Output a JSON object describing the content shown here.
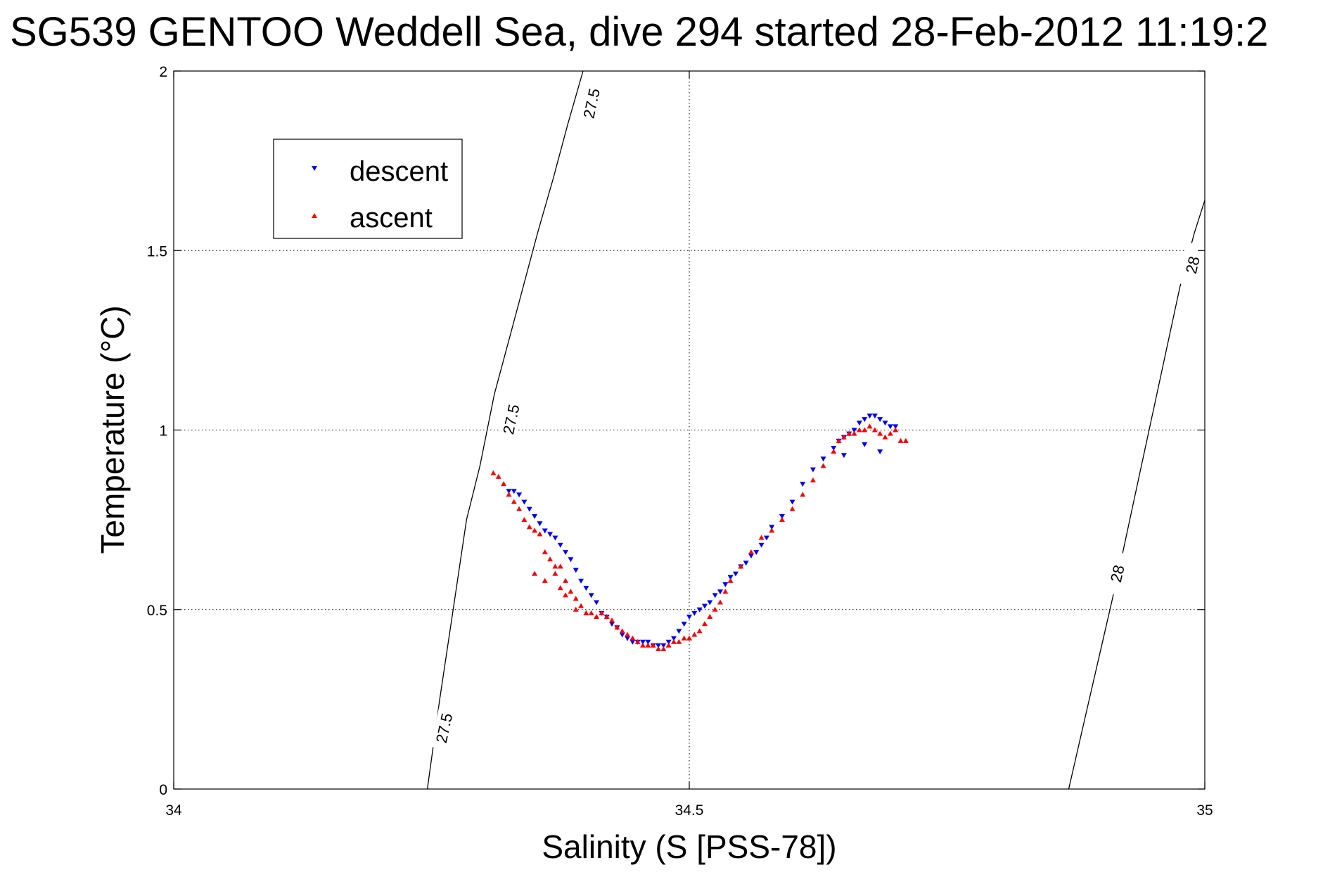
{
  "chart_data": {
    "type": "scatter",
    "title": "SG539 GENTOO Weddell Sea, dive 294 started 28-Feb-2012 11:19:2",
    "xlabel": "Salinity (S [PSS-78])",
    "ylabel": "Temperature (°C)",
    "xlim": [
      34,
      35
    ],
    "ylim": [
      0,
      2
    ],
    "xticks": [
      {
        "value": 34,
        "label": "34"
      },
      {
        "value": 34.5,
        "label": "34.5"
      },
      {
        "value": 35,
        "label": "35"
      }
    ],
    "yticks": [
      {
        "value": 0,
        "label": "0"
      },
      {
        "value": 0.5,
        "label": "0.5"
      },
      {
        "value": 1,
        "label": "1"
      },
      {
        "value": 1.5,
        "label": "1.5"
      },
      {
        "value": 2,
        "label": "2"
      }
    ],
    "grid": true,
    "grid_style": "dotted",
    "legend_position": "top-left",
    "series": [
      {
        "name": "descent",
        "marker": "triangle-down",
        "color": "#0000ff",
        "x": [
          34.325,
          34.33,
          34.335,
          34.34,
          34.345,
          34.35,
          34.355,
          34.36,
          34.365,
          34.37,
          34.375,
          34.38,
          34.385,
          34.39,
          34.395,
          34.4,
          34.405,
          34.41,
          34.415,
          34.42,
          34.425,
          34.43,
          34.435,
          34.44,
          34.445,
          34.45,
          34.455,
          34.46,
          34.465,
          34.47,
          34.475,
          34.48,
          34.485,
          34.49,
          34.495,
          34.5,
          34.505,
          34.51,
          34.515,
          34.52,
          34.525,
          34.53,
          34.535,
          34.54,
          34.545,
          34.55,
          34.555,
          34.56,
          34.565,
          34.57,
          34.575,
          34.58,
          34.59,
          34.6,
          34.61,
          34.62,
          34.63,
          34.64,
          34.645,
          34.65,
          34.655,
          34.66,
          34.665,
          34.67,
          34.675,
          34.68,
          34.685,
          34.69,
          34.695,
          34.7,
          34.65,
          34.67,
          34.685
        ],
        "y": [
          0.83,
          0.83,
          0.82,
          0.8,
          0.78,
          0.76,
          0.74,
          0.72,
          0.71,
          0.7,
          0.68,
          0.66,
          0.64,
          0.61,
          0.58,
          0.56,
          0.54,
          0.52,
          0.49,
          0.48,
          0.46,
          0.45,
          0.43,
          0.42,
          0.41,
          0.41,
          0.41,
          0.41,
          0.4,
          0.4,
          0.4,
          0.41,
          0.42,
          0.44,
          0.46,
          0.48,
          0.49,
          0.5,
          0.51,
          0.52,
          0.54,
          0.55,
          0.57,
          0.59,
          0.6,
          0.62,
          0.63,
          0.65,
          0.66,
          0.68,
          0.7,
          0.73,
          0.76,
          0.8,
          0.85,
          0.89,
          0.92,
          0.95,
          0.97,
          0.98,
          0.99,
          1.0,
          1.02,
          1.03,
          1.04,
          1.04,
          1.03,
          1.02,
          1.01,
          1.01,
          0.93,
          0.96,
          0.94
        ]
      },
      {
        "name": "ascent",
        "marker": "triangle-up",
        "color": "#ff0000",
        "x": [
          34.31,
          34.315,
          34.32,
          34.325,
          34.33,
          34.335,
          34.34,
          34.345,
          34.35,
          34.355,
          34.36,
          34.365,
          34.37,
          34.375,
          34.38,
          34.385,
          34.39,
          34.395,
          34.4,
          34.405,
          34.41,
          34.415,
          34.42,
          34.425,
          34.43,
          34.435,
          34.44,
          34.445,
          34.45,
          34.455,
          34.46,
          34.465,
          34.47,
          34.475,
          34.48,
          34.485,
          34.49,
          34.495,
          34.5,
          34.505,
          34.51,
          34.515,
          34.52,
          34.525,
          34.53,
          34.535,
          34.54,
          34.55,
          34.56,
          34.57,
          34.58,
          34.59,
          34.6,
          34.61,
          34.62,
          34.63,
          34.64,
          34.645,
          34.65,
          34.655,
          34.66,
          34.665,
          34.67,
          34.675,
          34.68,
          34.685,
          34.69,
          34.695,
          34.7,
          34.705,
          34.71,
          34.35,
          34.36,
          34.37,
          34.375,
          34.38,
          34.39,
          34.4
        ],
        "y": [
          0.88,
          0.87,
          0.85,
          0.82,
          0.8,
          0.78,
          0.75,
          0.73,
          0.72,
          0.71,
          0.66,
          0.64,
          0.6,
          0.62,
          0.58,
          0.55,
          0.53,
          0.51,
          0.49,
          0.49,
          0.48,
          0.49,
          0.48,
          0.47,
          0.45,
          0.44,
          0.43,
          0.42,
          0.41,
          0.4,
          0.4,
          0.4,
          0.39,
          0.39,
          0.4,
          0.41,
          0.41,
          0.42,
          0.42,
          0.43,
          0.44,
          0.46,
          0.48,
          0.5,
          0.52,
          0.55,
          0.58,
          0.62,
          0.66,
          0.7,
          0.72,
          0.75,
          0.78,
          0.82,
          0.86,
          0.9,
          0.94,
          0.97,
          0.98,
          0.99,
          0.99,
          1.0,
          1.0,
          1.01,
          1.0,
          0.99,
          0.98,
          0.99,
          1.0,
          0.97,
          0.97,
          0.6,
          0.58,
          0.62,
          0.56,
          0.54,
          0.5,
          0.49
        ]
      }
    ],
    "contours": [
      {
        "label": "27.5",
        "x": [
          34.246,
          34.258,
          34.271,
          34.284,
          34.297,
          34.311,
          34.325,
          34.339,
          34.353,
          34.368,
          34.382,
          34.397
        ],
        "y": [
          0.0,
          0.25,
          0.5,
          0.75,
          0.9,
          1.1,
          1.25,
          1.4,
          1.55,
          1.7,
          1.85,
          2.0
        ],
        "label_at": [
          {
            "x": 34.262,
            "y": 0.17
          },
          {
            "x": 34.327,
            "y": 1.03
          },
          {
            "x": 34.405,
            "y": 1.91
          }
        ]
      },
      {
        "label": "28",
        "x": [
          34.868,
          34.884,
          34.9,
          34.916,
          34.931,
          34.946,
          34.961,
          34.976,
          34.99,
          35.0
        ],
        "y": [
          0.0,
          0.2,
          0.4,
          0.6,
          0.8,
          1.0,
          1.2,
          1.4,
          1.55,
          1.64
        ],
        "label_at": [
          {
            "x": 34.915,
            "y": 0.6
          },
          {
            "x": 34.988,
            "y": 1.46
          }
        ]
      }
    ]
  }
}
